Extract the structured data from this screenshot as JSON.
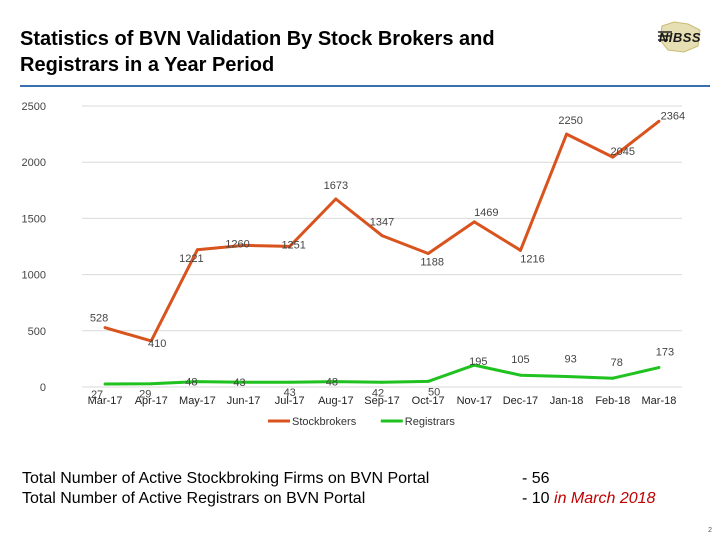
{
  "header": {
    "title_line1": "Statistics of BVN Validation By Stock Brokers and",
    "title_line2": "Registrars in a Year Period",
    "logo_text": "NIBSS"
  },
  "chart_data": {
    "type": "line",
    "title": "",
    "categories": [
      "Mar-17",
      "Apr-17",
      "May-17",
      "Jun-17",
      "Jul-17",
      "Aug-17",
      "Sep-17",
      "Oct-17",
      "Nov-17",
      "Dec-17",
      "Jan-18",
      "Feb-18",
      "Mar-18"
    ],
    "yticks": [
      0,
      500,
      1000,
      1500,
      2000,
      2500
    ],
    "ylim": [
      0,
      2500
    ],
    "grid": true,
    "legend": "bottom",
    "series": [
      {
        "name": "Stockbrokers",
        "color": "#d9531e",
        "values": [
          528,
          410,
          1221,
          1260,
          1251,
          1673,
          1347,
          1188,
          1469,
          1216,
          2250,
          2045,
          2364
        ]
      },
      {
        "name": "Registrars",
        "color": "#1fc21f",
        "values": [
          27,
          29,
          48,
          43,
          43,
          48,
          42,
          50,
          195,
          105,
          93,
          78,
          173
        ]
      }
    ]
  },
  "footer": {
    "line1_label": "Total Number of Active Stockbroking Firms on BVN Portal",
    "line2_label": "Total Number of Active Registrars on BVN Portal",
    "line1_value": "- 56",
    "line2_value": "- 10",
    "line2_highlight": "in March 2018"
  },
  "page_number": "2"
}
